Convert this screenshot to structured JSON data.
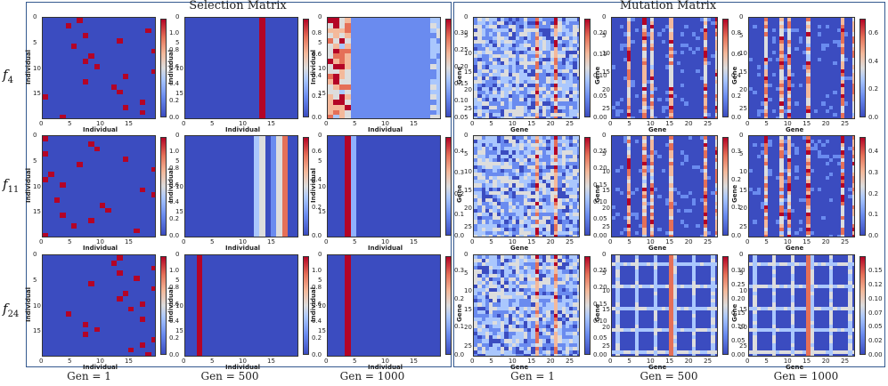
{
  "titles": {
    "selection": "Selection Matrix",
    "mutation": "Mutation Matrix"
  },
  "rows": [
    {
      "base": "f",
      "sub": "4"
    },
    {
      "base": "f",
      "sub": "11"
    },
    {
      "base": "f",
      "sub": "24"
    }
  ],
  "generations": [
    "Gen = 1",
    "Gen = 500",
    "Gen = 1000",
    "Gen = 1",
    "Gen = 500",
    "Gen = 1000"
  ],
  "axis_labels": {
    "individual": "Individual",
    "gene": "Gene"
  },
  "selection_ticks": [
    "0",
    "5",
    "10",
    "15"
  ],
  "mutation_ticks": [
    "0",
    "5",
    "10",
    "15",
    "20",
    "25"
  ],
  "colorbars": [
    [
      "0.0",
      "0.2",
      "0.4",
      "0.6",
      "0.8",
      "1.0"
    ],
    [
      "0.0",
      "0.2",
      "0.4",
      "0.6",
      "0.8"
    ],
    [
      "0.05",
      "0.10",
      "0.15",
      "0.20",
      "0.25",
      "0.30"
    ],
    [
      "0.00",
      "0.05",
      "0.10",
      "0.15",
      "0.20"
    ],
    [
      "0.0",
      "0.2",
      "0.4",
      "0.6",
      "0.8"
    ],
    [
      "0.0",
      "0.2",
      "0.4",
      "0.6"
    ],
    [
      "0.0",
      "0.2",
      "0.4",
      "0.6",
      "0.8",
      "1.0"
    ],
    [
      "0.0",
      "0.2",
      "0.4",
      "0.6"
    ],
    [
      "0.0",
      "0.1",
      "0.2",
      "0.3",
      "0.4"
    ],
    [
      "0.00",
      "0.05",
      "0.10",
      "0.15",
      "0.20",
      "0.25"
    ],
    [
      "0.0",
      "0.1",
      "0.2",
      "0.3"
    ],
    [
      "0.0",
      "0.1",
      "0.2",
      "0.3",
      "0.4"
    ],
    [
      "0.0",
      "0.2",
      "0.4",
      "0.6",
      "0.8",
      "1.0"
    ],
    [
      "0.0",
      "0.2",
      "0.4",
      "0.6",
      "0.8",
      "1.0"
    ],
    [
      "0.0",
      "0.1",
      "0.2",
      "0.3"
    ],
    [
      "0.00",
      "0.05",
      "0.10",
      "0.15",
      "0.20",
      "0.25"
    ],
    [
      "0.00",
      "0.05",
      "0.10",
      "0.15",
      "0.20",
      "0.25",
      "0.30"
    ],
    [
      "0.00",
      "0.02",
      "0.05",
      "0.07",
      "0.10",
      "0.12",
      "0.15"
    ]
  ],
  "colors": {
    "low": "#3b4cc0",
    "mid": "#dddddd",
    "high": "#b40426",
    "frame": "#34598f"
  }
}
